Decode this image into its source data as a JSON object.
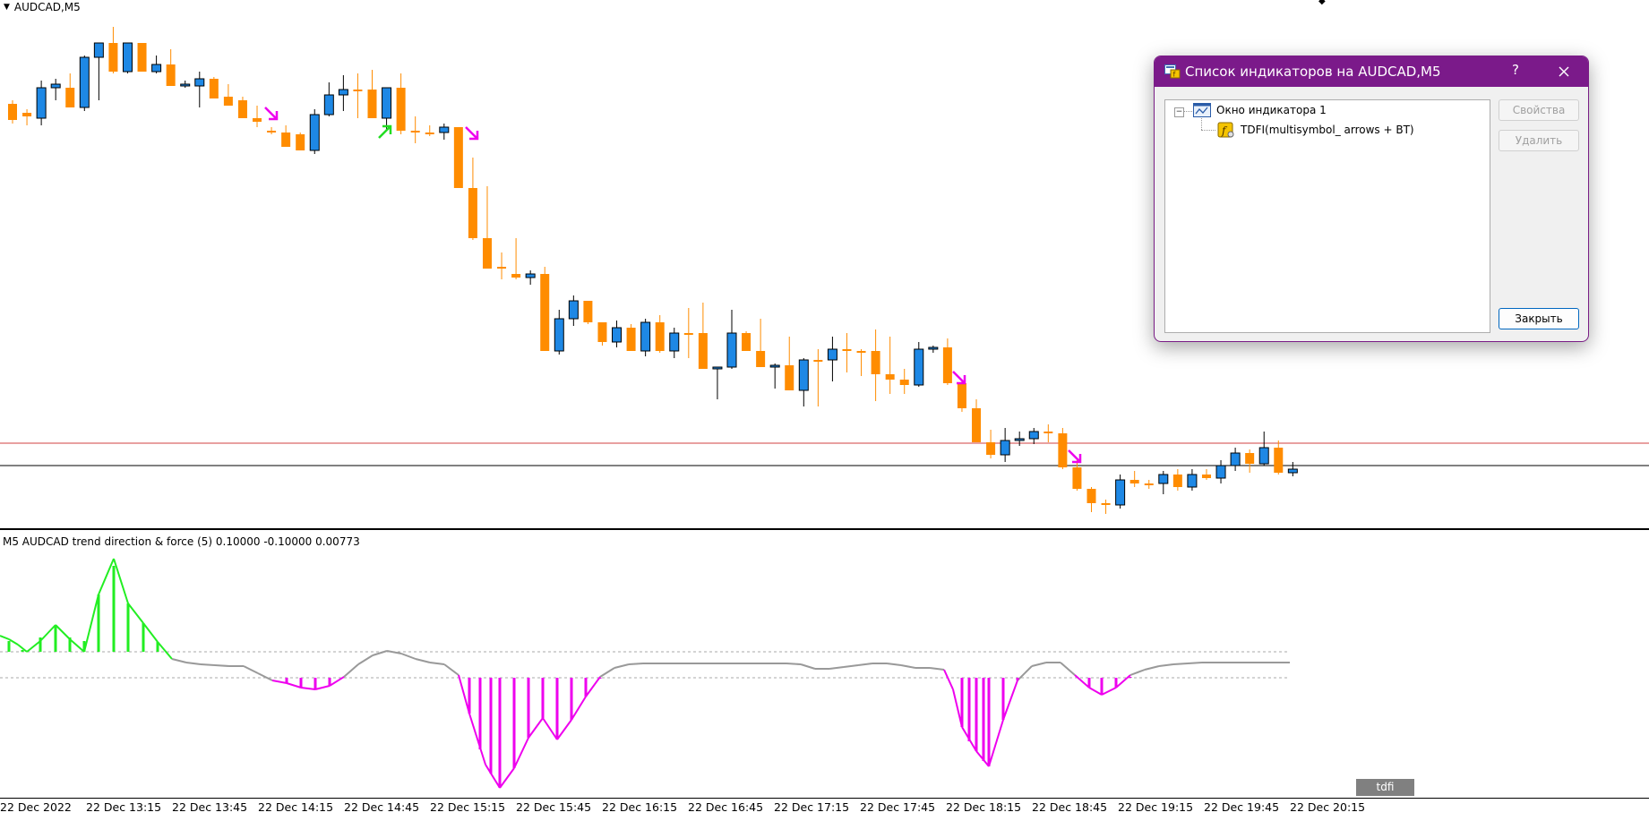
{
  "chart": {
    "symbol_label": "AUDCAD,M5",
    "subwindow_label": "M5 AUDCAD trend direction & force (5) 0.10000 -0.10000 0.00773",
    "subwindow_tag": "tdfi",
    "time_labels": [
      "22 Dec 2022",
      "22 Dec 13:15",
      "22 Dec 13:45",
      "22 Dec 14:15",
      "22 Dec 14:45",
      "22 Dec 15:15",
      "22 Dec 15:45",
      "22 Dec 16:15",
      "22 Dec 16:45",
      "22 Dec 17:15",
      "22 Dec 17:45",
      "22 Dec 18:15",
      "22 Dec 18:45",
      "22 Dec 19:15",
      "22 Dec 19:45",
      "22 Dec 20:15"
    ],
    "colors": {
      "bull": "#1e88e5",
      "bear": "#ff8c00",
      "arrow_up": "#22dd22",
      "arrow_down": "#ee00ee",
      "tdfi_up": "#22ee22",
      "tdfi_down": "#ee00ee",
      "tdfi_neutral": "#999999",
      "level_line": "#d04040",
      "price_line": "#000000"
    },
    "icons": [
      "arrow-up-icon",
      "arrow-down-icon"
    ]
  },
  "dialog": {
    "title": "Список индикаторов на AUDCAD,M5",
    "help_label": "?",
    "tree": {
      "window_label": "Окно индикатора 1",
      "indicator_label": "TDFI(multisymbol_ arrows + BT)"
    },
    "buttons": {
      "properties": "Свойства",
      "delete": "Удалить",
      "close": "Закрыть"
    }
  }
}
